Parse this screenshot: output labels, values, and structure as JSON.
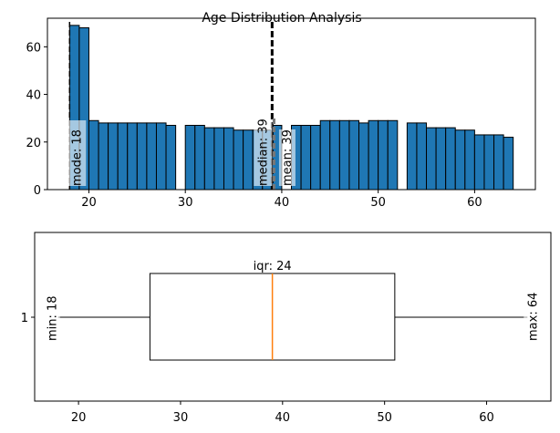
{
  "figure": {
    "title": "Age Distribution Analysis"
  },
  "colors": {
    "bar_fill": "#1f77b4",
    "bar_edge": "#000000",
    "median_line": "#ff7f0e",
    "stat_line": "#000000",
    "label_box": "#ffffff"
  },
  "chart_data": [
    {
      "type": "bar",
      "subtype": "histogram",
      "xlim": [
        15.7,
        66.3
      ],
      "ylim": [
        0,
        72
      ],
      "xticks": [
        20,
        30,
        40,
        50,
        60
      ],
      "yticks": [
        0,
        20,
        40,
        60
      ],
      "bins": [
        {
          "x": 18,
          "count": 69
        },
        {
          "x": 19,
          "count": 68
        },
        {
          "x": 20,
          "count": 29
        },
        {
          "x": 21,
          "count": 28
        },
        {
          "x": 22,
          "count": 28
        },
        {
          "x": 23,
          "count": 28
        },
        {
          "x": 24,
          "count": 28
        },
        {
          "x": 25,
          "count": 28
        },
        {
          "x": 26,
          "count": 28
        },
        {
          "x": 27,
          "count": 28
        },
        {
          "x": 28,
          "count": 27
        },
        {
          "x": 30,
          "count": 27
        },
        {
          "x": 31,
          "count": 27
        },
        {
          "x": 32,
          "count": 26
        },
        {
          "x": 33,
          "count": 26
        },
        {
          "x": 34,
          "count": 26
        },
        {
          "x": 35,
          "count": 25
        },
        {
          "x": 36,
          "count": 25
        },
        {
          "x": 37,
          "count": 25
        },
        {
          "x": 38,
          "count": 25
        },
        {
          "x": 39,
          "count": 27
        },
        {
          "x": 41,
          "count": 27
        },
        {
          "x": 42,
          "count": 27
        },
        {
          "x": 43,
          "count": 27
        },
        {
          "x": 44,
          "count": 29
        },
        {
          "x": 45,
          "count": 29
        },
        {
          "x": 46,
          "count": 29
        },
        {
          "x": 47,
          "count": 29
        },
        {
          "x": 48,
          "count": 28
        },
        {
          "x": 49,
          "count": 29
        },
        {
          "x": 50,
          "count": 29
        },
        {
          "x": 51,
          "count": 29
        },
        {
          "x": 53,
          "count": 28
        },
        {
          "x": 54,
          "count": 28
        },
        {
          "x": 55,
          "count": 26
        },
        {
          "x": 56,
          "count": 26
        },
        {
          "x": 57,
          "count": 26
        },
        {
          "x": 58,
          "count": 25
        },
        {
          "x": 59,
          "count": 25
        },
        {
          "x": 60,
          "count": 23
        },
        {
          "x": 61,
          "count": 23
        },
        {
          "x": 62,
          "count": 23
        },
        {
          "x": 63,
          "count": 22
        }
      ],
      "bin_width": 1,
      "reference_lines": [
        {
          "name": "mode",
          "x": 18,
          "label": "mode: 18",
          "style": "dashed"
        },
        {
          "name": "median",
          "x": 39,
          "label": "median: 39",
          "style": "dashed"
        },
        {
          "name": "mean",
          "x": 39.2,
          "label": "mean: 39",
          "style": "dashed"
        }
      ]
    },
    {
      "type": "box",
      "xlim": [
        15.7,
        66.3
      ],
      "xticks": [
        20,
        30,
        40,
        50,
        60
      ],
      "yticks": [
        1
      ],
      "ytick_label": "1",
      "stats": {
        "min": 18,
        "q1": 27,
        "median": 39,
        "q3": 51,
        "max": 64
      },
      "annotations": {
        "iqr": "iqr: 24",
        "min": "min: 18",
        "max": "max: 64"
      }
    }
  ]
}
